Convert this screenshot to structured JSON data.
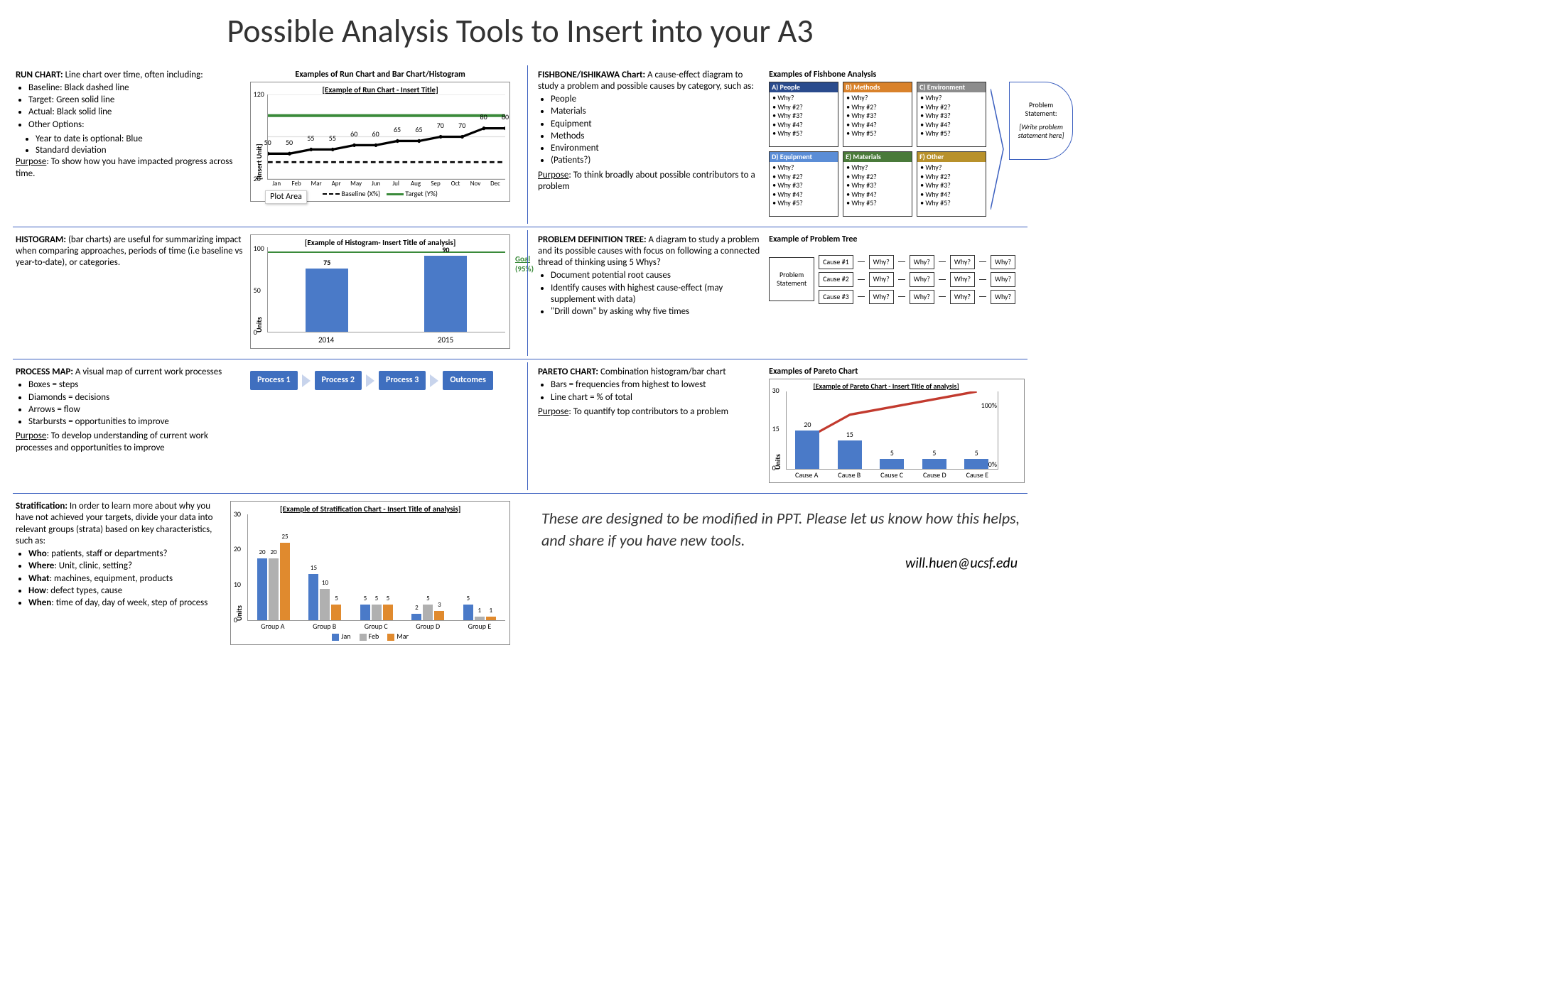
{
  "title": "Possible Analysis Tools to Insert into your A3",
  "run": {
    "heading": "RUN CHART:",
    "desc": " Line chart over time, often including:",
    "bullets": [
      "Baseline: Black dashed line",
      "Target: Green solid line",
      "Actual: Black solid line",
      "Other Options:"
    ],
    "sub": [
      "Year to date is optional: Blue",
      "Standard deviation"
    ],
    "purpose_l": "Purpose",
    "purpose": ": To show how you have impacted progress across time.",
    "section_title": "Examples of Run Chart and Bar Chart/Histogram",
    "chart_title": "[Example of Run Chart - Insert Title]",
    "ylabel": "[Insert Unit]",
    "ymin": 20,
    "ymax": 120,
    "months": [
      "Jan",
      "Feb",
      "Mar",
      "Apr",
      "May",
      "Jun",
      "Jul",
      "Aug",
      "Sep",
      "Oct",
      "Nov",
      "Dec"
    ],
    "actual": [
      50,
      50,
      55,
      55,
      60,
      60,
      65,
      65,
      70,
      70,
      80,
      80
    ],
    "target_y": 95,
    "baseline_y": 40,
    "plot_area_tag": "Plot Area",
    "legend_baseline": "Baseline (X%)",
    "legend_target": "Target (Y%)",
    "line_color_actual": "#000000",
    "line_color_target": "#3a8a3a",
    "line_color_baseline": "#000000"
  },
  "hist": {
    "heading": "HISTOGRAM:",
    "desc": " (bar charts) are useful for summarizing impact when comparing approaches, periods of time (i.e baseline vs year-to-date), or categories.",
    "chart_title": "[Example of Histogram- Insert Title of analysis]",
    "ylabel": "Units",
    "ymin": 0,
    "ymax": 100,
    "ystep": 50,
    "categories": [
      "2014",
      "2015"
    ],
    "values": [
      75,
      90
    ],
    "goal_label": "Goal",
    "goal_sub": "(95%)",
    "goal_y": 95,
    "bar_color": "#4a7ac8",
    "goal_color": "#3a8a3a"
  },
  "pm": {
    "heading": "PROCESS MAP:",
    "desc": " A visual map of current work processes",
    "bullets": [
      "Boxes = steps",
      "Diamonds = decisions",
      "Arrows = flow",
      "Starbursts = opportunities to improve"
    ],
    "purpose_l": "Purpose",
    "purpose": ": To develop understanding of current work processes and opportunities to improve",
    "steps": [
      "Process 1",
      "Process 2",
      "Process 3",
      "Outcomes"
    ],
    "box_color": "#3f6fbf"
  },
  "fb": {
    "heading": "FISHBONE/ISHIKAWA Chart:",
    "desc": " A cause-effect diagram to study a problem and possible causes by category, such as:",
    "bullets": [
      "People",
      "Materials",
      "Equipment",
      "Methods",
      "Environment",
      "(Patients?)"
    ],
    "purpose_l": "Purpose",
    "purpose": ": To think broadly about possible contributors to a problem",
    "section_title": "Examples of Fishbone Analysis",
    "cats": [
      {
        "k": "A) People",
        "c": "#2a4b8d"
      },
      {
        "k": "B) Methods",
        "c": "#d9822b"
      },
      {
        "k": "C) Environment",
        "c": "#8c8c8c"
      },
      {
        "k": "D) Equipment",
        "c": "#5b8dd6"
      },
      {
        "k": "E) Materials",
        "c": "#4a7a3a"
      },
      {
        "k": "F) Other",
        "c": "#b8912b"
      }
    ],
    "whys": [
      "• Why?",
      "• Why #2?",
      "• Why #3?",
      "• Why #4?",
      "• Why #5?"
    ],
    "prob_head": "Problem Statement:",
    "prob_body": "[Write problem statement here]"
  },
  "pt": {
    "heading": "PROBLEM DEFINITION TREE:",
    "desc": " A diagram to study a problem and its possible causes with focus on following a connected thread of thinking using 5 Whys?",
    "bullets": [
      "Document potential root causes",
      "Identify causes with highest cause-effect (may supplement with data)",
      "\"Drill down\" by asking why five times"
    ],
    "section_title": "Example of Problem Tree",
    "root": "Problem Statement",
    "causes": [
      "Cause #1",
      "Cause #2",
      "Cause #3"
    ],
    "why": "Why?"
  },
  "pareto": {
    "heading": "PARETO CHART:",
    "desc": " Combination histogram/bar chart",
    "bullets": [
      "Bars = frequencies from highest to lowest",
      "Line chart = % of total"
    ],
    "purpose_l": "Purpose",
    "purpose": ": To quantify top contributors to a problem",
    "section_title": "Examples of Pareto Chart",
    "chart_title": "[Example of Pareto Chart - Insert Title of analysis]",
    "ylabel": "Units",
    "ymin": 0,
    "ymax": 30,
    "ystep": 15,
    "categories": [
      "Cause A",
      "Cause B",
      "Cause C",
      "Cause D",
      "Cause E"
    ],
    "values": [
      20,
      15,
      5,
      5,
      5
    ],
    "right_top": "100%",
    "right_bot": "0%",
    "bar_color": "#4a7ac8",
    "line_color": "#c23a2e"
  },
  "strat": {
    "heading": "Stratification:",
    "desc": " In order to learn more about why you have not achieved your targets, divide your data into relevant groups (strata) based on key characteristics, such as:",
    "bullets_k": [
      "Who",
      "Where",
      "What",
      "How",
      "When"
    ],
    "bullets_v": [
      ": patients, staff or departments?",
      ": Unit, clinic, setting?",
      ": machines, equipment, products",
      ": defect types, cause",
      ": time of day, day of week, step of process"
    ],
    "chart_title": "[Example of Stratification Chart - Insert Title of analysis]",
    "ylabel": "Units",
    "ymin": 0,
    "ymax": 30,
    "ystep": 10,
    "categories": [
      "Group A",
      "Group B",
      "Group C",
      "Group D",
      "Group E"
    ],
    "series": [
      "Jan",
      "Feb",
      "Mar"
    ],
    "colors": [
      "#4a7ac8",
      "#b0b0b0",
      "#e08a2e"
    ],
    "data": [
      [
        20,
        20,
        25
      ],
      [
        15,
        10,
        5
      ],
      [
        5,
        5,
        5
      ],
      [
        2,
        5,
        3
      ],
      [
        5,
        1,
        1
      ]
    ]
  },
  "footer": {
    "note": "These are designed to be modified in PPT. Please let us know how this helps, and share if you have new tools.",
    "email": "will.huen@ucsf.edu"
  }
}
